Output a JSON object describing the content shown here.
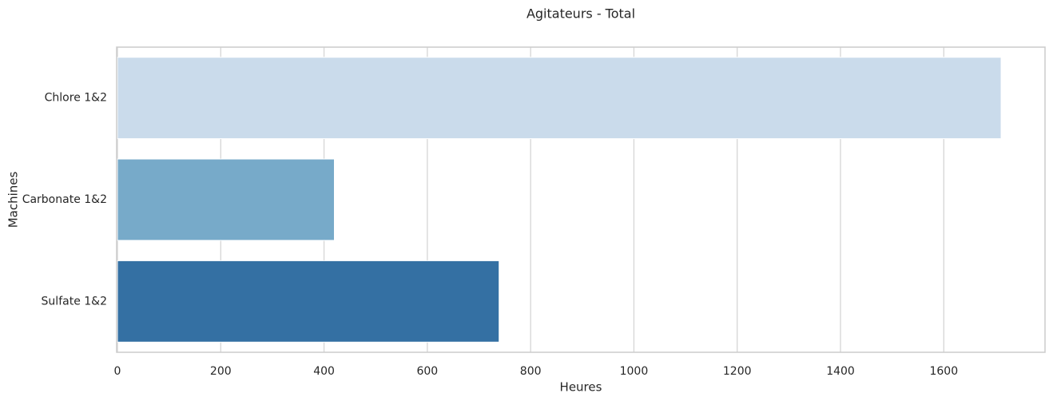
{
  "chart_data": {
    "type": "bar",
    "orientation": "horizontal",
    "title": "Agitateurs - Total",
    "xlabel": "Heures",
    "ylabel": "Machines",
    "categories": [
      "Chlore 1&2",
      "Carbonate 1&2",
      "Sulfate 1&2"
    ],
    "values": [
      1711,
      420,
      739
    ],
    "colors": [
      "#cadbeb",
      "#77aac9",
      "#3470a3"
    ],
    "xlim": [
      0,
      1796
    ],
    "xticks": [
      0,
      200,
      400,
      600,
      800,
      1000,
      1200,
      1400,
      1600
    ],
    "grid": true
  }
}
